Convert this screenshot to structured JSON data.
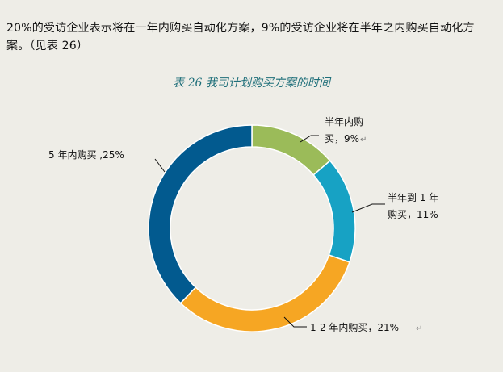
{
  "text": {
    "intro": "20%的受访企业表示将在一年内购买自动化方案，9%的受访企业将在半年之内购买自动化方案。（见表 26）",
    "caption": "表 26 我司计划购买方案的时间"
  },
  "chart_data": {
    "type": "pie",
    "title": "表 26 我司计划购买方案的时间",
    "donut": true,
    "categories": [
      "半年内购买",
      "半年到 1 年内购买",
      "1-2 年内购买",
      "5 年内购买"
    ],
    "values": [
      9,
      11,
      21,
      25
    ],
    "value_labels": [
      "半年内购买，9%",
      "半年到 1 年内购买，11%",
      "1-2 年内购买，21%",
      "5 年内购买 ,25%"
    ],
    "colors": [
      "#9bbb59",
      "#17a2c4",
      "#f6a623",
      "#025a8f"
    ]
  }
}
